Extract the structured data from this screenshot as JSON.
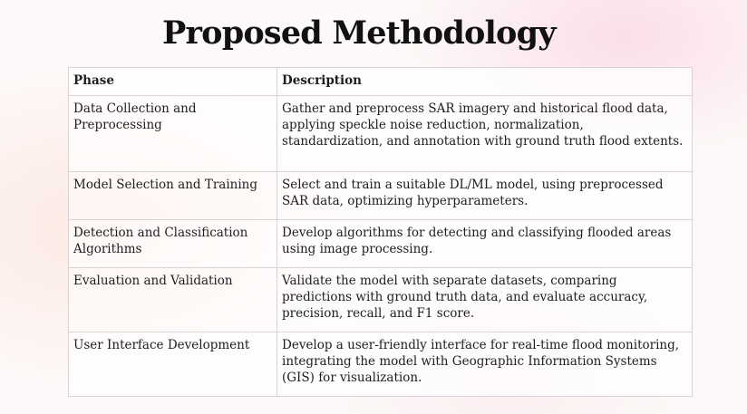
{
  "title": "Proposed Methodology",
  "table": {
    "headers": [
      "Phase",
      "Description"
    ],
    "rows": [
      {
        "phase": "Data Collection and Preprocessing",
        "description": "Gather and preprocess SAR imagery and historical flood data, applying speckle noise reduction, normalization, standardization, and annotation with ground truth flood extents."
      },
      {
        "phase": "Model Selection and Training",
        "description": "Select and train a suitable DL/ML model, using preprocessed SAR data, optimizing hyperparameters."
      },
      {
        "phase": "Detection and Classification Algorithms",
        "description": "Develop algorithms for detecting and classifying flooded areas using image processing."
      },
      {
        "phase": "Evaluation and Validation",
        "description": "Validate the model with separate datasets, comparing predictions with ground truth data, and evaluate accuracy, precision, recall, and F1 score."
      },
      {
        "phase": "User Interface Development",
        "description": "Develop a user-friendly interface for real-time flood monitoring, integrating the model with Geographic Information Systems (GIS) for visualization."
      }
    ]
  }
}
